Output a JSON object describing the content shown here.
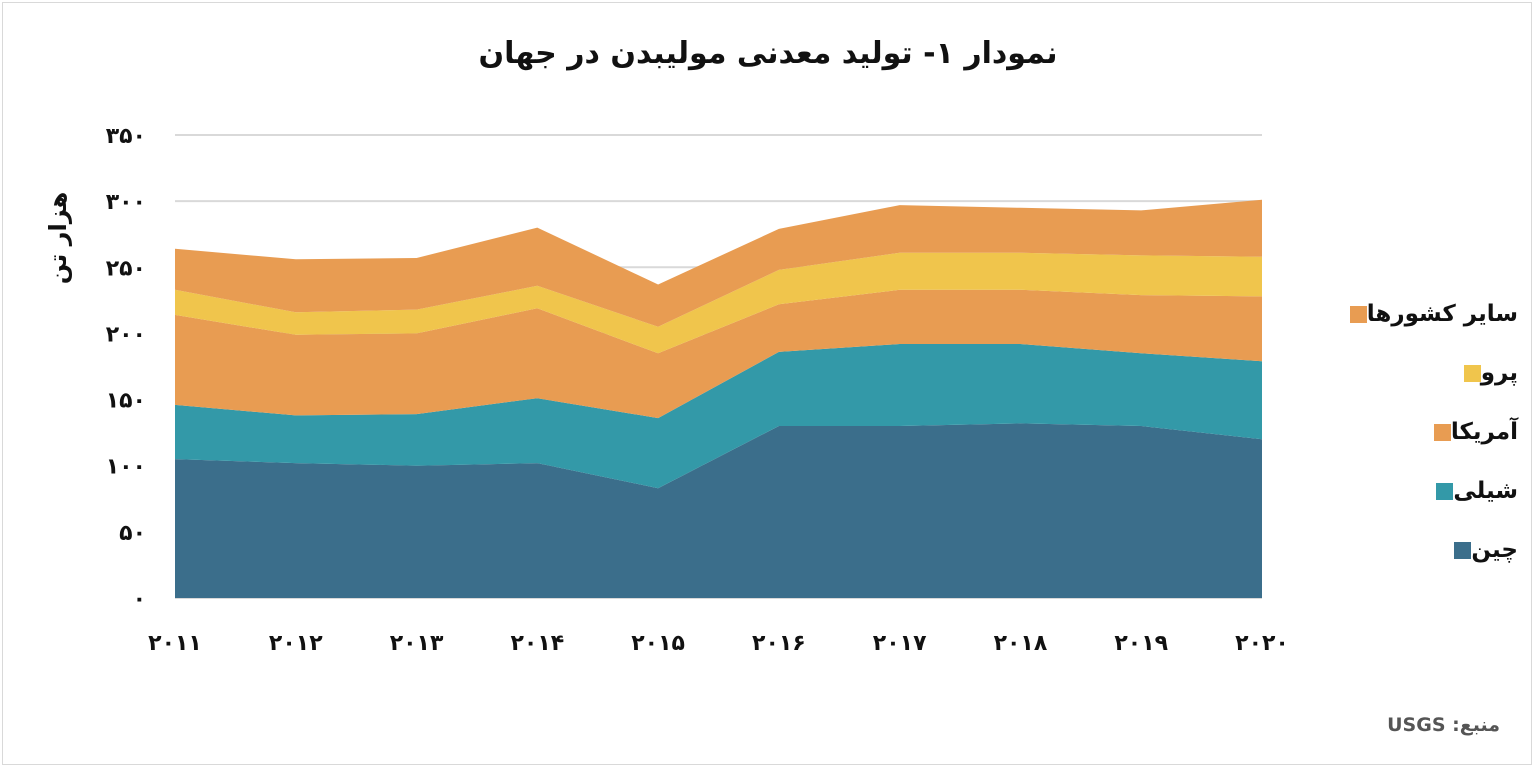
{
  "chart_data": {
    "type": "area",
    "stacked": true,
    "title": "نمودار ۱- تولید معدنی مولیبدن در جهان",
    "ylabel": "هزار تن",
    "source": "منبع: USGS",
    "x": [
      "۲۰۱۱",
      "۲۰۱۲",
      "۲۰۱۳",
      "۲۰۱۴",
      "۲۰۱۵",
      "۲۰۱۶",
      "۲۰۱۷",
      "۲۰۱۸",
      "۲۰۱۹",
      "۲۰۲۰"
    ],
    "yticks": [
      "۰",
      "۵۰",
      "۱۰۰",
      "۱۵۰",
      "۲۰۰",
      "۲۵۰",
      "۳۰۰",
      "۳۵۰"
    ],
    "ylim": [
      0,
      350
    ],
    "grid": true,
    "legend_position": "right",
    "series": [
      {
        "name": "چین",
        "color": "#3b6e8b",
        "values": [
          105,
          102,
          100,
          102,
          83,
          130,
          130,
          132,
          130,
          120
        ]
      },
      {
        "name": "شیلی",
        "color": "#3399a8",
        "values": [
          41,
          36,
          39,
          49,
          53,
          56,
          62,
          60,
          55,
          59
        ]
      },
      {
        "name": "آمریکا",
        "color": "#e89c52",
        "values": [
          68,
          61,
          61,
          68,
          49,
          36,
          41,
          41,
          44,
          49
        ]
      },
      {
        "name": "پرو",
        "color": "#f0c54c",
        "values": [
          19,
          17,
          18,
          17,
          20,
          26,
          28,
          28,
          30,
          30
        ]
      },
      {
        "name": "سایر کشورها",
        "color": "#e89c52",
        "values": [
          31,
          40,
          39,
          44,
          32,
          31,
          36,
          34,
          34,
          43
        ]
      }
    ]
  }
}
